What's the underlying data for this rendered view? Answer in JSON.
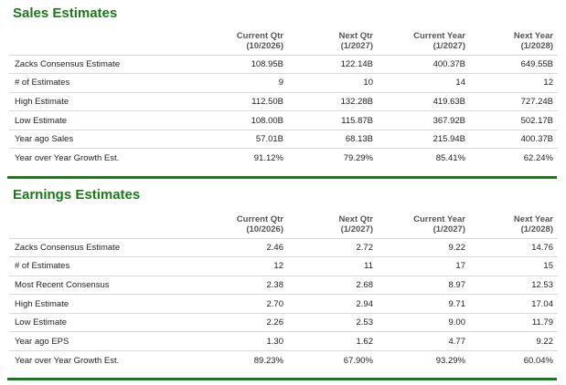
{
  "sales": {
    "title": "Sales Estimates",
    "headers": [
      {
        "line1": "Current Qtr",
        "line2": "(10/2026)"
      },
      {
        "line1": "Next Qtr",
        "line2": "(1/2027)"
      },
      {
        "line1": "Current Year",
        "line2": "(1/2027)"
      },
      {
        "line1": "Next Year",
        "line2": "(1/2028)"
      }
    ],
    "rows": [
      {
        "label": "Zacks Consensus Estimate",
        "values": [
          "108.95B",
          "122.14B",
          "400.37B",
          "649.55B"
        ]
      },
      {
        "label": "# of Estimates",
        "values": [
          "9",
          "10",
          "14",
          "12"
        ]
      },
      {
        "label": "High Estimate",
        "values": [
          "112.50B",
          "132.28B",
          "419.63B",
          "727.24B"
        ]
      },
      {
        "label": "Low Estimate",
        "values": [
          "108.00B",
          "115.87B",
          "367.92B",
          "502.17B"
        ]
      },
      {
        "label": "Year ago Sales",
        "values": [
          "57.01B",
          "68.13B",
          "215.94B",
          "400.37B"
        ]
      },
      {
        "label": "Year over Year Growth Est.",
        "values": [
          "91.12%",
          "79.29%",
          "85.41%",
          "62.24%"
        ]
      }
    ]
  },
  "earnings": {
    "title": "Earnings Estimates",
    "headers": [
      {
        "line1": "Current Qtr",
        "line2": "(10/2026)"
      },
      {
        "line1": "Next Qtr",
        "line2": "(1/2027)"
      },
      {
        "line1": "Current Year",
        "line2": "(1/2027)"
      },
      {
        "line1": "Next Year",
        "line2": "(1/2028)"
      }
    ],
    "rows": [
      {
        "label": "Zacks Consensus Estimate",
        "values": [
          "2.46",
          "2.72",
          "9.22",
          "14.76"
        ]
      },
      {
        "label": "# of Estimates",
        "values": [
          "12",
          "11",
          "17",
          "15"
        ]
      },
      {
        "label": "Most Recent Consensus",
        "values": [
          "2.38",
          "2.68",
          "8.97",
          "12.53"
        ]
      },
      {
        "label": "High Estimate",
        "values": [
          "2.70",
          "2.94",
          "9.71",
          "17.04"
        ]
      },
      {
        "label": "Low Estimate",
        "values": [
          "2.26",
          "2.53",
          "9.00",
          "11.79"
        ]
      },
      {
        "label": "Year ago EPS",
        "values": [
          "1.30",
          "1.62",
          "4.77",
          "9.22"
        ]
      },
      {
        "label": "Year over Year Growth Est.",
        "values": [
          "89.23%",
          "67.90%",
          "93.29%",
          "60.04%"
        ]
      }
    ]
  },
  "colors": {
    "accent": "#1a7a1a",
    "rule": "#d9d9d9",
    "header_text": "#555555"
  }
}
